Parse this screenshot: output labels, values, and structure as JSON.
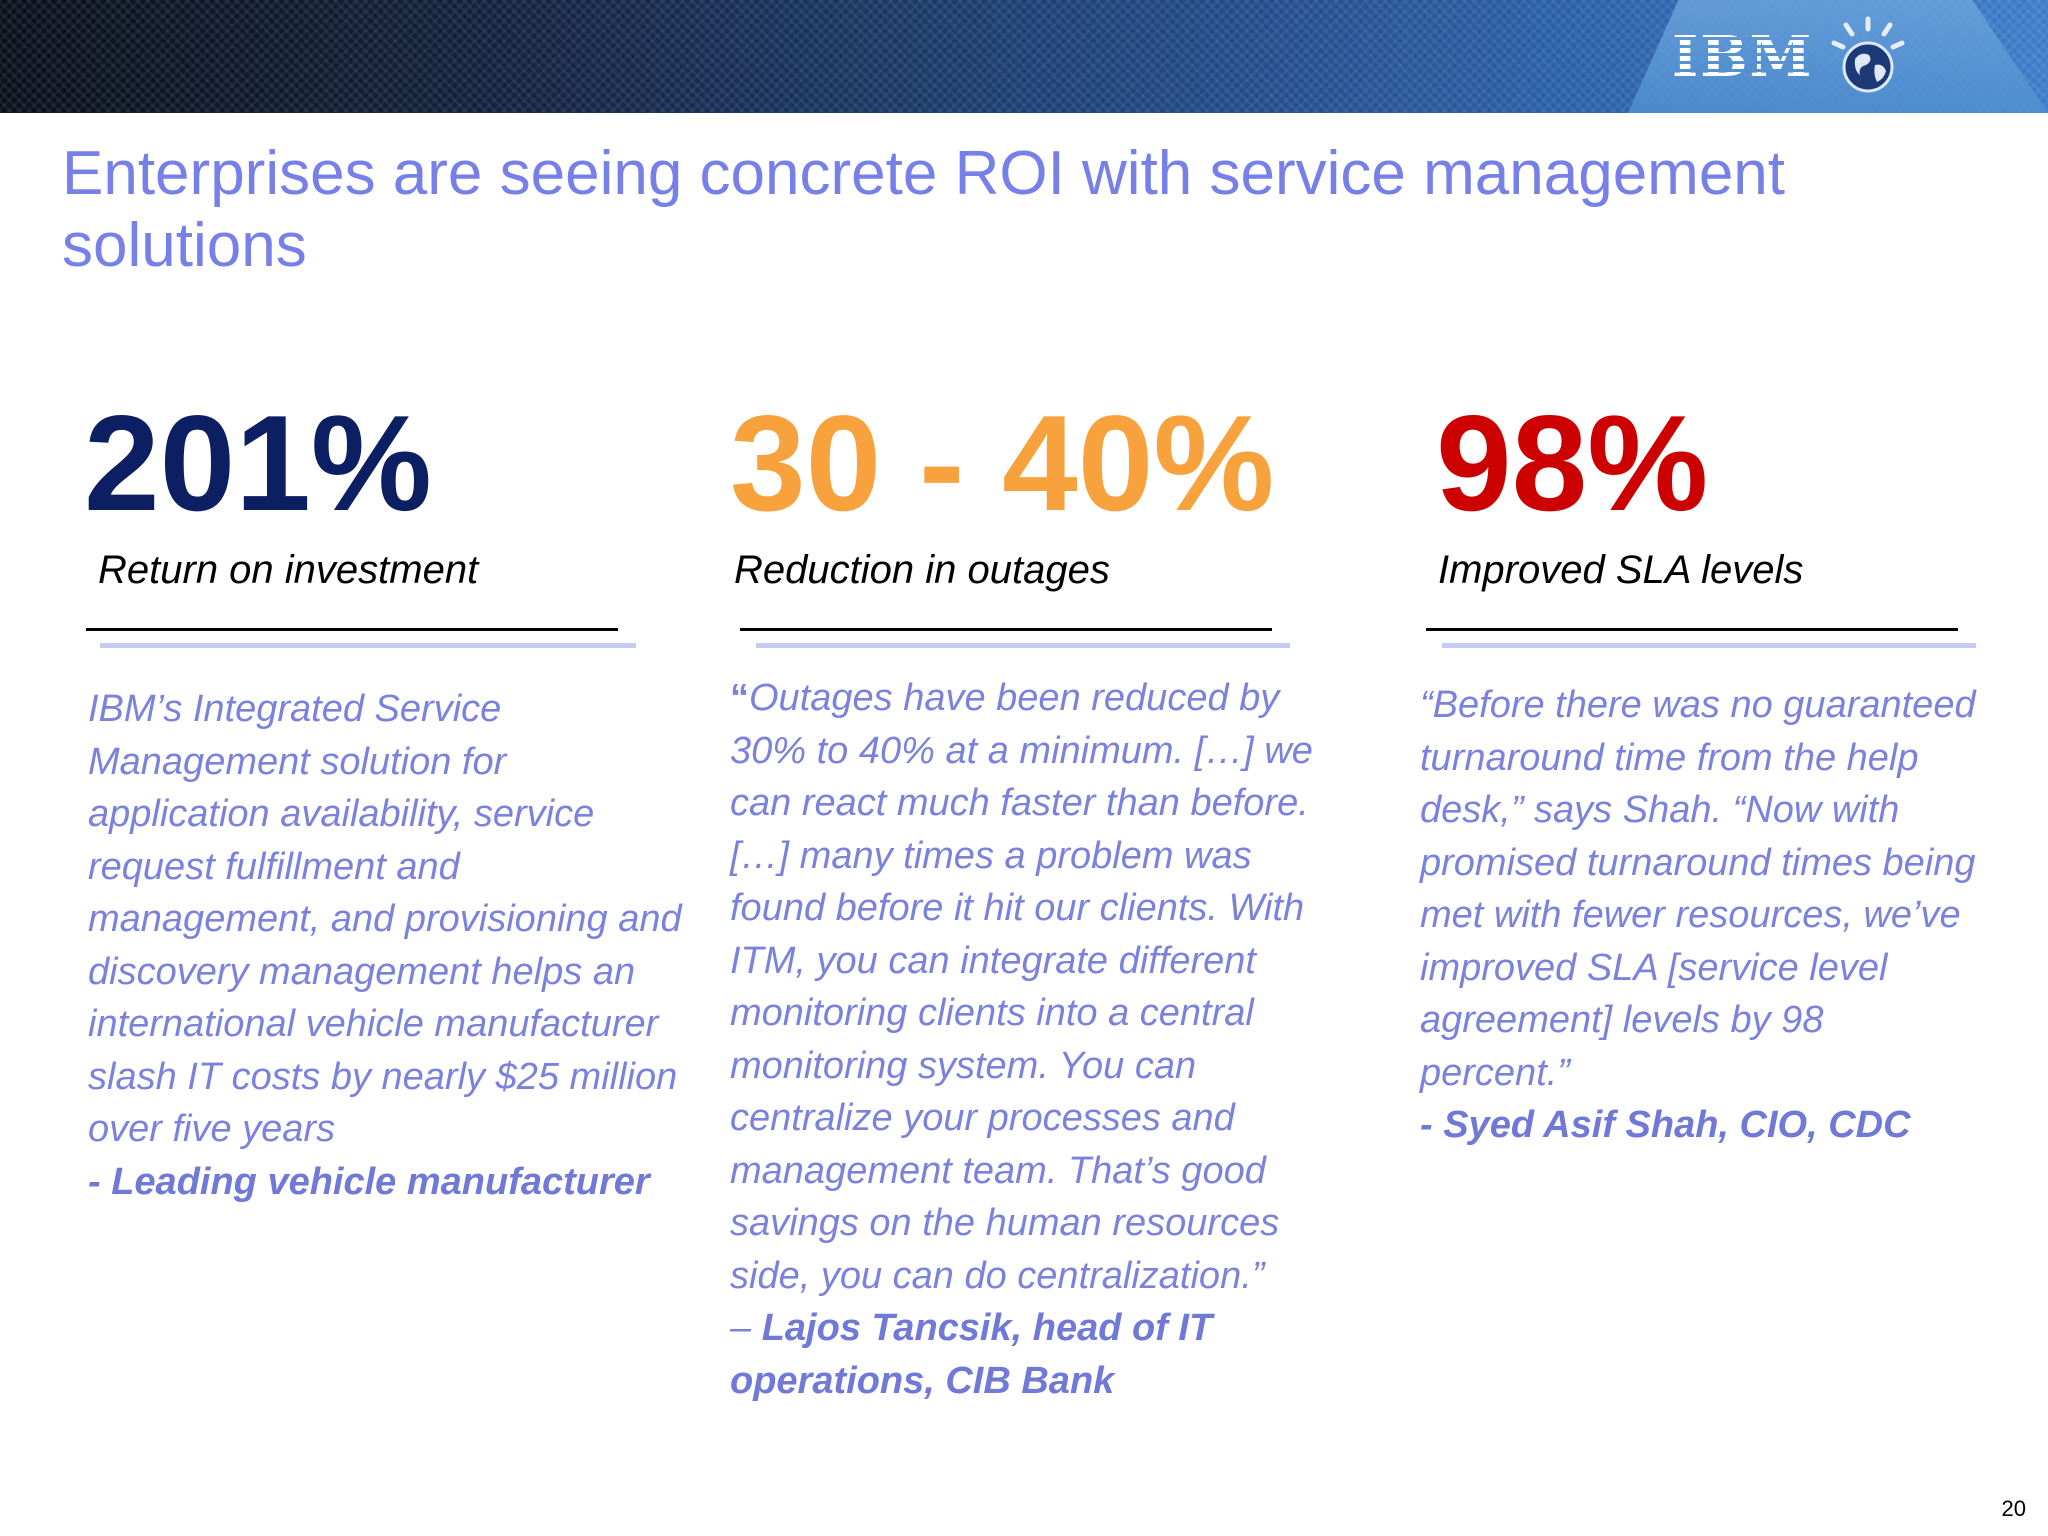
{
  "header": {
    "logo_text": "IBM",
    "logo_icon": "globe-icon"
  },
  "title": "Enterprises are seeing concrete ROI with service management solutions",
  "columns": [
    {
      "stat": "201%",
      "stat_color": "#0d1f63",
      "label": "Return on investment",
      "body": "IBM’s Integrated Service Management solution for application availability, service request  fulfillment and management, and provisioning and discovery management helps an international vehicle manufacturer slash IT costs by nearly $25 million over five years",
      "attribution": "- Leading vehicle manufacturer"
    },
    {
      "stat": "30 - 40%",
      "stat_color": "#f7a23c",
      "label": "Reduction in outages",
      "quote_mark": "“",
      "body": "Outages have been reduced by 30% to 40% at a minimum. […] we can react much faster than before. […] many times a problem was found before it hit our clients. With ITM, you can integrate different monitoring clients into a central monitoring system. You can centralize your processes and management team. That’s good savings on the human resources side, you can do centralization.”",
      "attribution_prefix": "– ",
      "attribution": "Lajos Tancsik, head of IT operations, CIB Bank"
    },
    {
      "stat": "98%",
      "stat_color": "#cc0000",
      "label": "Improved SLA levels",
      "body": "“Before there was no guaranteed turnaround time from the help desk,” says Shah. “Now with promised turnaround times being met with fewer resources, we’ve improved SLA [service level agreement] levels by 98 percent.”",
      "attribution": "- Syed Asif Shah, CIO, CDC"
    }
  ],
  "page_number": "20"
}
